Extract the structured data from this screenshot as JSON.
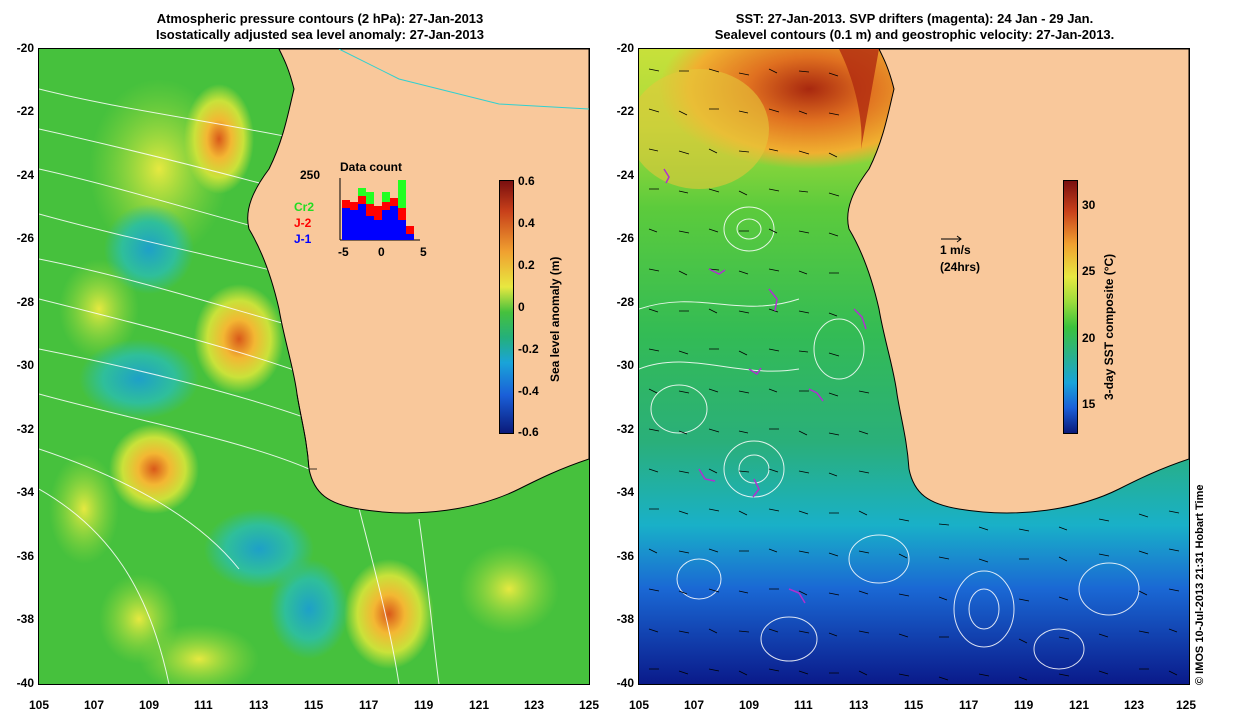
{
  "left_panel": {
    "title_line1": "Atmospheric pressure contours (2 hPa): 27-Jan-2013",
    "title_line2": "Isostatically adjusted sea level anomaly: 27-Jan-2013",
    "colorbar_label": "Sea level anomaly (m)",
    "colorbar_ticks": [
      "0.6",
      "0.4",
      "0.2",
      "0",
      "-0.2",
      "-0.4",
      "-0.6"
    ],
    "inset": {
      "title": "Data count",
      "ymax_label": "250",
      "legend": [
        "Cr2",
        "J-2",
        "J-1"
      ],
      "x_ticks": [
        "-5",
        "0",
        "5"
      ]
    }
  },
  "right_panel": {
    "title_line1": "SST: 27-Jan-2013. SVP drifters (magenta): 24 Jan - 29 Jan.",
    "title_line2": "Sealevel contours (0.1 m) and geostrophic velocity: 27-Jan-2013.",
    "colorbar_label": "3-day SST composite (°C)",
    "colorbar_ticks": [
      "30",
      "25",
      "20",
      "15"
    ],
    "velocity_scale_label": "1 m/s",
    "velocity_scale_sub": "(24hrs)"
  },
  "axes": {
    "x_ticks": [
      "105",
      "107",
      "109",
      "111",
      "113",
      "115",
      "117",
      "119",
      "121",
      "123",
      "125"
    ],
    "y_ticks": [
      "-20",
      "-22",
      "-24",
      "-26",
      "-28",
      "-30",
      "-32",
      "-34",
      "-36",
      "-38",
      "-40"
    ]
  },
  "credit": "© IMOS 10-Jul-2013 21:31 Hobart Time",
  "colors": {
    "land": "#f9c89b",
    "ocean_mid": "#3cc23c",
    "coast": "#000000"
  }
}
